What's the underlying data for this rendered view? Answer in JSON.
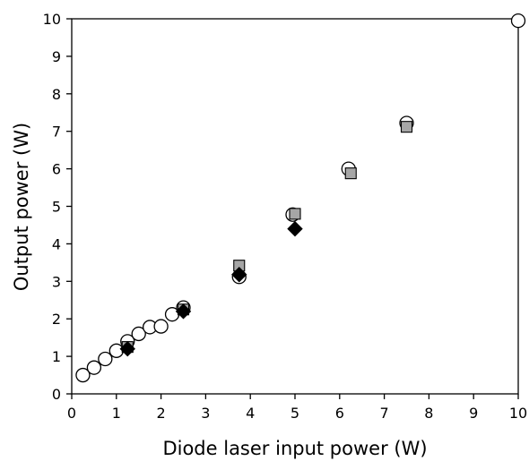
{
  "chart_data": {
    "type": "scatter",
    "xlabel": "Diode laser input power (W)",
    "ylabel": "Output power (W)",
    "xlim": [
      0,
      10
    ],
    "ylim": [
      0,
      10
    ],
    "xticks": [
      "0",
      "1",
      "2",
      "3",
      "4",
      "5",
      "6",
      "7",
      "8",
      "9",
      "10"
    ],
    "yticks": [
      "0",
      "1",
      "2",
      "3",
      "4",
      "5",
      "6",
      "7",
      "8",
      "9",
      "10"
    ],
    "grid": false,
    "series": [
      {
        "marker": "circle-open",
        "color": "#000000",
        "points": [
          [
            0.25,
            0.5
          ],
          [
            0.5,
            0.7
          ],
          [
            0.75,
            0.93
          ],
          [
            1.0,
            1.15
          ],
          [
            1.25,
            1.4
          ],
          [
            1.5,
            1.6
          ],
          [
            1.75,
            1.78
          ],
          [
            2.0,
            1.8
          ],
          [
            2.25,
            2.12
          ],
          [
            2.5,
            2.3
          ],
          [
            3.75,
            3.12
          ],
          [
            4.95,
            4.78
          ],
          [
            6.2,
            6.0
          ],
          [
            7.5,
            7.22
          ],
          [
            10.0,
            9.95
          ]
        ]
      },
      {
        "marker": "square-filled",
        "color": "#a6a6a6",
        "points": [
          [
            1.25,
            1.25
          ],
          [
            2.5,
            2.25
          ],
          [
            3.75,
            3.42
          ],
          [
            5.0,
            4.8
          ],
          [
            6.25,
            5.88
          ],
          [
            7.5,
            7.12
          ]
        ]
      },
      {
        "marker": "diamond-filled",
        "color": "#000000",
        "points": [
          [
            1.25,
            1.2
          ],
          [
            2.5,
            2.2
          ],
          [
            3.75,
            3.18
          ],
          [
            5.0,
            4.4
          ]
        ]
      }
    ]
  }
}
